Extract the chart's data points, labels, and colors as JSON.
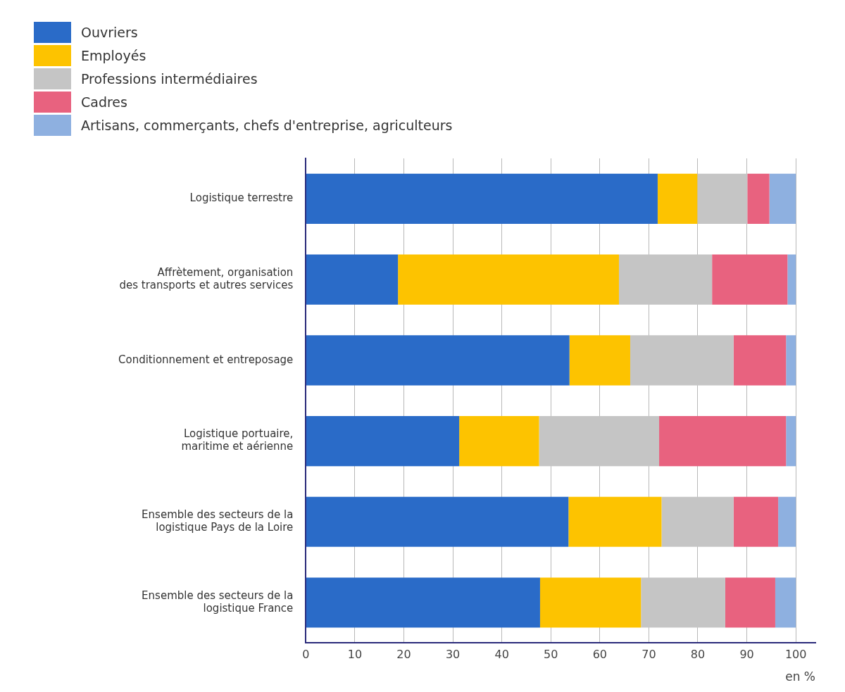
{
  "chart_data": {
    "type": "bar",
    "orientation": "horizontal",
    "stacked": true,
    "categories": [
      "Logistique terrestre",
      "Affrètement, organisation\ndes transports et autres services",
      "Conditionnement et entreposage",
      "Logistique portuaire,\nmaritime et aérienne",
      "Ensemble des secteurs de la\nlogistique Pays de la Loire",
      "Ensemble des secteurs de la\nlogistique France"
    ],
    "series": [
      {
        "name": "Ouvriers",
        "color": "#2a6bc8",
        "values": [
          71.8,
          18.8,
          53.8,
          31.3,
          53.6,
          47.8
        ]
      },
      {
        "name": "Employés",
        "color": "#fdc300",
        "values": [
          8.1,
          45.1,
          12.4,
          16.3,
          19.0,
          20.6
        ]
      },
      {
        "name": "Professions intermédiaires",
        "color": "#c5c5c5",
        "values": [
          10.2,
          19.0,
          21.1,
          24.5,
          14.7,
          17.2
        ]
      },
      {
        "name": "Cadres",
        "color": "#e8627f",
        "values": [
          4.5,
          15.4,
          10.7,
          25.9,
          9.1,
          10.2
        ]
      },
      {
        "name": "Artisans, commerçants, chefs d'entreprise, agriculteurs",
        "color": "#8eb0e0",
        "values": [
          5.4,
          1.7,
          2.0,
          2.0,
          3.6,
          4.2
        ]
      }
    ],
    "xlabel": "en %",
    "xlim": [
      0,
      104
    ],
    "xticks": [
      0,
      10,
      20,
      30,
      40,
      50,
      60,
      70,
      80,
      90,
      100
    ],
    "grid": "x",
    "legend": "top left"
  }
}
